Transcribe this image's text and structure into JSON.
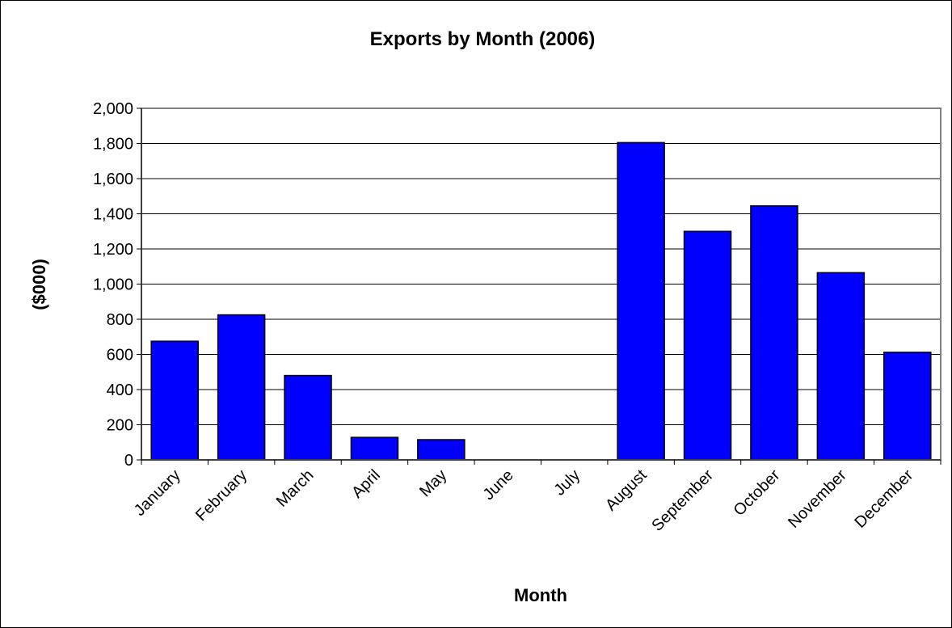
{
  "chart_data": {
    "type": "bar",
    "title": "Exports by Month (2006)",
    "xlabel": "Month",
    "ylabel": "($000)",
    "categories": [
      "January",
      "February",
      "March",
      "April",
      "May",
      "June",
      "July",
      "August",
      "September",
      "October",
      "November",
      "December"
    ],
    "values": [
      675,
      825,
      480,
      128,
      115,
      0,
      0,
      1805,
      1300,
      1445,
      1065,
      612
    ],
    "ylim": [
      0,
      2000
    ],
    "yticks": [
      "0",
      "200",
      "400",
      "600",
      "800",
      "1,000",
      "1,200",
      "1,400",
      "1,600",
      "1,800",
      "2,000"
    ],
    "grid": true,
    "legend": "none",
    "bar_color": "#0000FF",
    "bar_edge_color": "#000000",
    "gridline_color": "#000000",
    "plot_border_color": "#808080"
  }
}
